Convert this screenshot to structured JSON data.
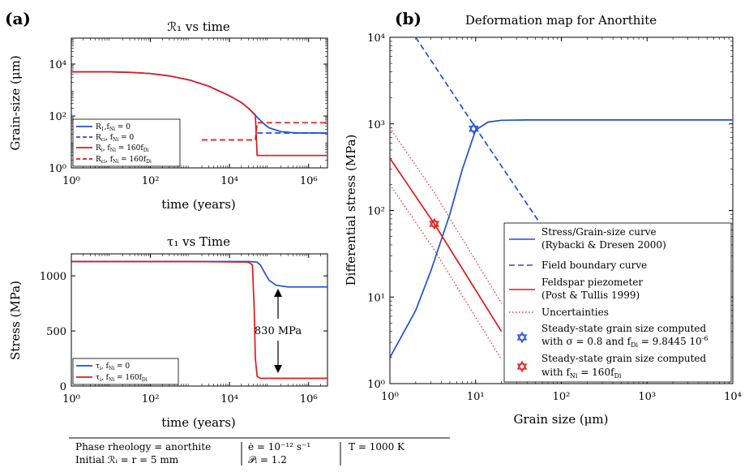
{
  "panel_labels": [
    "(a)",
    "(b)"
  ],
  "colors": {
    "blue": "#1f4fd8",
    "red": "#e01919",
    "black": "#000000"
  },
  "chart_data": [
    {
      "id": "a-top",
      "type": "line",
      "title": "ℛ₁ vs time",
      "xlabel": "time (years)",
      "ylabel": "Grain-size (μm)",
      "xscale": "log",
      "yscale": "log",
      "xlim": [
        1,
        3000000
      ],
      "ylim": [
        1,
        100000
      ],
      "xticks": [
        {
          "v": 1,
          "label": "10⁰"
        },
        {
          "v": 100,
          "label": "10²"
        },
        {
          "v": 10000,
          "label": "10⁴"
        },
        {
          "v": 1000000,
          "label": "10⁶"
        }
      ],
      "yticks": [
        {
          "v": 1,
          "label": "10⁰"
        },
        {
          "v": 100,
          "label": "10²"
        },
        {
          "v": 10000,
          "label": "10⁴"
        }
      ],
      "legend_position": "bottom-left",
      "series": [
        {
          "name": "R₁, f_Ni = 0",
          "color": "blue",
          "dash": "solid",
          "x": [
            1,
            10,
            30,
            100,
            300,
            1000,
            3000,
            10000,
            20000,
            30000,
            50000,
            80000,
            100000,
            200000,
            500000,
            1000000,
            3000000
          ],
          "y": [
            5000,
            5000,
            4800,
            4300,
            3500,
            2400,
            1400,
            600,
            330,
            200,
            90,
            45,
            35,
            25,
            22,
            22,
            22
          ]
        },
        {
          "name": "R_ci, f_Ni = 0",
          "color": "blue",
          "dash": "dashed",
          "x": [
            50000,
            80000,
            120000,
            300000,
            1000000,
            3000000
          ],
          "y": [
            22,
            22,
            22,
            22,
            22,
            22
          ]
        },
        {
          "name": "R_i, f_Ni = 160f_Di",
          "color": "red",
          "dash": "solid",
          "x": [
            1,
            10,
            30,
            100,
            300,
            1000,
            3000,
            10000,
            20000,
            30000,
            45000,
            50000,
            100000,
            1000000,
            3000000
          ],
          "y": [
            5000,
            5000,
            4800,
            4300,
            3500,
            2400,
            1400,
            600,
            330,
            200,
            110,
            3.0,
            3.0,
            3.0,
            3.0
          ]
        },
        {
          "name": "R_ci, f_Ni = 160f_Di",
          "color": "red",
          "dash": "dashed",
          "x": [
            2000,
            45000,
            50000,
            3000000
          ],
          "y": [
            12,
            12,
            55,
            55
          ]
        }
      ]
    },
    {
      "id": "a-bottom",
      "type": "line",
      "title": "τ₁ vs Time",
      "xlabel": "time (years)",
      "ylabel": "Stress (MPa)",
      "xscale": "log",
      "yscale": "linear",
      "xlim": [
        1,
        3000000
      ],
      "ylim": [
        0,
        1200
      ],
      "xticks": [
        {
          "v": 1,
          "label": "10⁰"
        },
        {
          "v": 100,
          "label": "10²"
        },
        {
          "v": 10000,
          "label": "10⁴"
        },
        {
          "v": 1000000,
          "label": "10⁶"
        }
      ],
      "yticks": [
        {
          "v": 0,
          "label": "0"
        },
        {
          "v": 500,
          "label": "500"
        },
        {
          "v": 1000,
          "label": "1000"
        }
      ],
      "legend_position": "bottom-left",
      "annotation": {
        "text": "830 MPa",
        "x": 400000,
        "y_top": 900,
        "y_bottom": 70
      },
      "series": [
        {
          "name": "τ_i, f_Ni = 0",
          "color": "blue",
          "dash": "solid",
          "x": [
            1,
            1000,
            30000,
            50000,
            60000,
            80000,
            100000,
            150000,
            300000,
            1000000,
            3000000
          ],
          "y": [
            1130,
            1130,
            1130,
            1125,
            1100,
            1020,
            960,
            915,
            900,
            900,
            900
          ]
        },
        {
          "name": "τ_i, f_Ni = 160f_Di",
          "color": "red",
          "dash": "solid",
          "x": [
            1,
            1000,
            30000,
            38000,
            42000,
            45000,
            50000,
            60000,
            100000,
            1000000,
            3000000
          ],
          "y": [
            1130,
            1130,
            1125,
            1100,
            700,
            250,
            90,
            70,
            70,
            70,
            70
          ]
        }
      ]
    },
    {
      "id": "b",
      "type": "line",
      "title": "Deformation map for Anorthite",
      "xlabel": "Grain size (μm)",
      "ylabel": "Differential stress (MPa)",
      "xscale": "log",
      "yscale": "log",
      "xlim": [
        1,
        10000
      ],
      "ylim": [
        1,
        10000
      ],
      "xticks": [
        {
          "v": 1,
          "label": "10⁰"
        },
        {
          "v": 10,
          "label": "10¹"
        },
        {
          "v": 100,
          "label": "10²"
        },
        {
          "v": 1000,
          "label": "10³"
        },
        {
          "v": 10000,
          "label": "10⁴"
        }
      ],
      "yticks": [
        {
          "v": 1,
          "label": "10⁰"
        },
        {
          "v": 10,
          "label": "10¹"
        },
        {
          "v": 100,
          "label": "10²"
        },
        {
          "v": 1000,
          "label": "10³"
        },
        {
          "v": 10000,
          "label": "10⁴"
        }
      ],
      "legend_position": "bottom-right",
      "series": [
        {
          "name": "Stress/Grain-size curve",
          "name2": "(Rybacki & Dresen 2000)",
          "color": "blue",
          "dash": "solid",
          "legend": true,
          "x": [
            1,
            2,
            3,
            5,
            7,
            10,
            14,
            20,
            40,
            100,
            1000,
            10000
          ],
          "y": [
            2,
            7,
            20,
            90,
            300,
            850,
            1050,
            1100,
            1110,
            1110,
            1110,
            1110
          ]
        },
        {
          "name": "Field boundary curve",
          "color": "blue",
          "dash": "dashed",
          "legend": true,
          "x": [
            2,
            10,
            60
          ],
          "y": [
            10000,
            900,
            65
          ]
        },
        {
          "name": "Feldspar piezometer",
          "name2": "(Post & Tullis 1999)",
          "color": "red",
          "dash": "solid",
          "legend": true,
          "x": [
            1,
            3.3,
            20
          ],
          "y": [
            400,
            70,
            4
          ]
        },
        {
          "name": "Uncertainties",
          "color": "red",
          "dash": "dotted",
          "legend": true,
          "x": [
            1,
            3.3,
            20
          ],
          "y": [
            900,
            160,
            8.5
          ]
        },
        {
          "name": "",
          "color": "red",
          "dash": "dotted",
          "legend": false,
          "x": [
            1,
            3.3,
            20
          ],
          "y": [
            200,
            35,
            1.9
          ]
        }
      ],
      "markers": [
        {
          "name": "Steady-state grain size computed",
          "name2": "with σ = 0.8 and f_Di = 9.8445 10⁻⁶",
          "color": "blue",
          "x": 9.5,
          "y": 880
        },
        {
          "name": "Steady-state grain size computed",
          "name2": "with f_Ni = 160f_Di",
          "color": "red",
          "x": 3.3,
          "y": 70
        }
      ]
    }
  ],
  "legend_a_top": [
    {
      "main": "R₁",
      "sub": ",f",
      "sub2": "Ni",
      "tail": " = 0"
    },
    {
      "main": "R",
      "sub": "ci",
      "sub2": "",
      "tail": ", f_Ni = 0"
    },
    {
      "main": "R",
      "sub": "i",
      "sub2": "",
      "tail": ", f_Ni = 160f_Di"
    },
    {
      "main": "R",
      "sub": "ci",
      "sub2": "",
      "tail": ", f_Ni = 160f_Di"
    }
  ],
  "footer": {
    "rheology": "Phase rheology = anorthite",
    "initial": "Initial ℛᵢ = r = 5 mm",
    "strain_rate": "ė = 10⁻¹² s⁻¹",
    "p": "𝒫ᵢ = 1.2",
    "temp": "T = 1000 K"
  }
}
